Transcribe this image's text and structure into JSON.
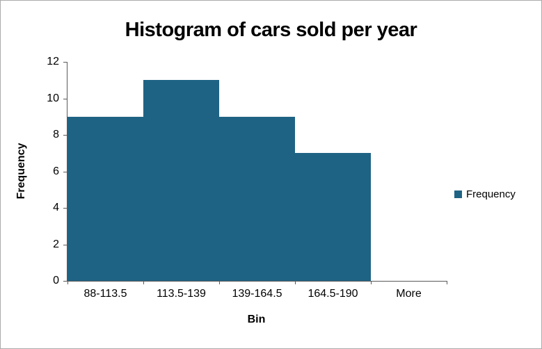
{
  "chart": {
    "title": "Histogram of cars sold per year",
    "x_axis_title": "Bin",
    "y_axis_title": "Frequency",
    "legend_label": "Frequency"
  },
  "chart_data": {
    "type": "bar",
    "subtype": "histogram",
    "title": "Histogram of cars sold per year",
    "categories": [
      "88-113.5",
      "113.5-139",
      "139-164.5",
      "164.5-190",
      "More"
    ],
    "values": [
      9,
      11,
      9,
      7,
      0
    ],
    "xlabel": "Bin",
    "ylabel": "Frequency",
    "ylim": [
      0,
      12
    ],
    "ytick_step": 2,
    "yticks": [
      0,
      2,
      4,
      6,
      8,
      10,
      12
    ],
    "legend": [
      "Frequency"
    ],
    "legend_position": "right",
    "grid": false,
    "bar_gap": 0,
    "bar_color": "#1f6384",
    "axis_color": "#595959"
  }
}
